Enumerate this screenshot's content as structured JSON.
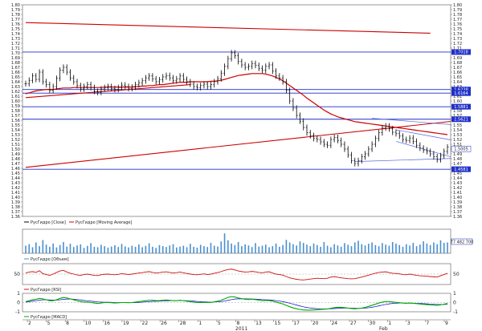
{
  "chart_data": {
    "type": "candlestick",
    "main_panel": {
      "ylim": [
        1.36,
        1.8
      ],
      "y_ticks": [
        "1.80",
        "1.79",
        "1.78",
        "1.77",
        "1.76",
        "1.75",
        "1.74",
        "1.73",
        "1.72",
        "1.71",
        "1.70",
        "1.69",
        "1.68",
        "1.67",
        "1.66",
        "1.65",
        "1.64",
        "1.63",
        "1.62",
        "1.61",
        "1.60",
        "1.59",
        "1.58",
        "1.57",
        "1.56",
        "1.55",
        "1.54",
        "1.53",
        "1.52",
        "1.51",
        "1.50",
        "1.49",
        "1.48",
        "1.47",
        "1.46",
        "1.45",
        "1.44",
        "1.43",
        "1.42",
        "1.41",
        "1.40",
        "1.39",
        "1.38",
        "1.37",
        "1.36"
      ],
      "price_series": {
        "name": "РусГидро [Close]",
        "color": "#000000",
        "y": [
          1.636,
          1.643,
          1.652,
          1.645,
          1.66,
          1.64,
          1.634,
          1.622,
          1.63,
          1.647,
          1.664,
          1.67,
          1.66,
          1.648,
          1.64,
          1.632,
          1.625,
          1.63,
          1.634,
          1.628,
          1.62,
          1.618,
          1.625,
          1.628,
          1.63,
          1.626,
          1.624,
          1.628,
          1.633,
          1.63,
          1.626,
          1.629,
          1.634,
          1.638,
          1.642,
          1.648,
          1.652,
          1.646,
          1.64,
          1.644,
          1.65,
          1.653,
          1.648,
          1.642,
          1.646,
          1.652,
          1.645,
          1.64,
          1.635,
          1.63,
          1.628,
          1.632,
          1.635,
          1.63,
          1.634,
          1.64,
          1.646,
          1.658,
          1.672,
          1.688,
          1.7,
          1.694,
          1.682,
          1.675,
          1.67,
          1.672,
          1.678,
          1.674,
          1.668,
          1.664,
          1.672,
          1.675,
          1.662,
          1.652,
          1.648,
          1.64,
          1.622,
          1.6,
          1.585,
          1.57,
          1.558,
          1.545,
          1.534,
          1.528,
          1.522,
          1.52,
          1.515,
          1.51,
          1.508,
          1.52,
          1.524,
          1.518,
          1.51,
          1.5,
          1.488,
          1.476,
          1.47,
          1.476,
          1.484,
          1.49,
          1.5,
          1.51,
          1.522,
          1.534,
          1.544,
          1.548,
          1.542,
          1.535,
          1.532,
          1.527,
          1.52,
          1.518,
          1.523,
          1.516,
          1.508,
          1.502,
          1.498,
          1.495,
          1.49,
          1.484,
          1.478,
          1.486,
          1.495,
          1.504
        ]
      },
      "moving_average": {
        "name": "РусГидро [Moving Average]",
        "color": "#cc0000",
        "y": [
          1.615,
          1.617,
          1.619,
          1.621,
          1.622,
          1.623,
          1.624,
          1.624,
          1.624,
          1.625,
          1.626,
          1.627,
          1.627,
          1.627,
          1.628,
          1.628,
          1.628,
          1.628,
          1.628,
          1.628,
          1.628,
          1.628,
          1.628,
          1.629,
          1.629,
          1.629,
          1.629,
          1.629,
          1.629,
          1.629,
          1.629,
          1.629,
          1.63,
          1.63,
          1.631,
          1.631,
          1.632,
          1.632,
          1.633,
          1.634,
          1.634,
          1.635,
          1.636,
          1.637,
          1.638,
          1.639,
          1.639,
          1.639,
          1.64,
          1.64,
          1.64,
          1.64,
          1.64,
          1.64,
          1.641,
          1.641,
          1.642,
          1.643,
          1.645,
          1.647,
          1.649,
          1.651,
          1.653,
          1.654,
          1.655,
          1.656,
          1.657,
          1.657,
          1.657,
          1.657,
          1.656,
          1.654,
          1.652,
          1.649,
          1.646,
          1.642,
          1.637,
          1.632,
          1.627,
          1.622,
          1.617,
          1.612,
          1.606,
          1.601,
          1.596,
          1.591,
          1.586,
          1.581,
          1.577,
          1.573,
          1.57,
          1.567,
          1.565,
          1.563,
          1.561,
          1.559,
          1.557,
          1.556,
          1.555,
          1.554,
          1.553,
          1.552,
          1.551,
          1.55,
          1.549,
          1.548,
          1.547,
          1.546,
          1.545,
          1.544,
          1.543,
          1.542,
          1.541,
          1.54,
          1.539,
          1.538,
          1.537,
          1.536,
          1.535,
          1.534,
          1.533,
          1.532,
          1.531,
          1.53
        ]
      },
      "horizontal_levels": [
        {
          "value": 1.7018,
          "label": "1.7018"
        },
        {
          "value": 1.6238,
          "label": "1.6238"
        },
        {
          "value": 1.6164,
          "label": "1.6164"
        },
        {
          "value": 1.5881,
          "label": "1.5881"
        },
        {
          "value": 1.5621,
          "label": "1.5621"
        },
        {
          "value": 1.4581,
          "label": "1.4581"
        }
      ],
      "price_tag": {
        "value": 1.5005,
        "label": "1.5005"
      },
      "trend_lines": [
        {
          "color": "#cc0000",
          "from": [
            0,
            1.763
          ],
          "to": [
            118,
            1.741
          ]
        },
        {
          "color": "#cc0000",
          "from": [
            0,
            1.462
          ],
          "to": [
            135,
            1.566
          ]
        },
        {
          "color": "#cc0000",
          "from": [
            0,
            1.607
          ],
          "to": [
            48,
            1.634
          ]
        },
        {
          "color": "#5566dd",
          "from": [
            101,
            1.564
          ],
          "to": [
            131,
            1.547
          ]
        },
        {
          "color": "#5566dd",
          "from": [
            96,
            1.474
          ],
          "to": [
            131,
            1.482
          ]
        },
        {
          "color": "#5566dd",
          "from": [
            108,
            1.54
          ],
          "to": [
            131,
            1.51
          ]
        },
        {
          "color": "#5566dd",
          "from": [
            108,
            1.516
          ],
          "to": [
            131,
            1.47
          ]
        }
      ]
    },
    "volume_panel": {
      "name": "РусГидро [Объем]",
      "value_label": "77 482 700",
      "ylim": [
        0,
        1
      ],
      "values": [
        0.35,
        0.42,
        0.28,
        0.5,
        0.33,
        0.61,
        0.4,
        0.3,
        0.45,
        0.27,
        0.38,
        0.52,
        0.31,
        0.44,
        0.29,
        0.36,
        0.41,
        0.25,
        0.34,
        0.47,
        0.3,
        0.28,
        0.39,
        0.33,
        0.26,
        0.31,
        0.37,
        0.29,
        0.43,
        0.32,
        0.27,
        0.35,
        0.3,
        0.41,
        0.28,
        0.34,
        0.46,
        0.3,
        0.25,
        0.38,
        0.33,
        0.29,
        0.36,
        0.42,
        0.27,
        0.31,
        0.35,
        0.28,
        0.44,
        0.3,
        0.26,
        0.39,
        0.33,
        0.29,
        0.48,
        0.35,
        0.31,
        0.55,
        0.92,
        0.6,
        0.45,
        0.38,
        0.52,
        0.33,
        0.41,
        0.36,
        0.29,
        0.47,
        0.31,
        0.35,
        0.4,
        0.28,
        0.33,
        0.45,
        0.3,
        0.38,
        0.62,
        0.5,
        0.42,
        0.36,
        0.55,
        0.48,
        0.4,
        0.33,
        0.45,
        0.38,
        0.3,
        0.52,
        0.35,
        0.28,
        0.42,
        0.36,
        0.3,
        0.47,
        0.39,
        0.33,
        0.5,
        0.58,
        0.42,
        0.36,
        0.44,
        0.5,
        0.38,
        0.33,
        0.47,
        0.4,
        0.35,
        0.52,
        0.45,
        0.38,
        0.3,
        0.42,
        0.36,
        0.48,
        0.33,
        0.4,
        0.55,
        0.45,
        0.38,
        0.5,
        0.42,
        0.6,
        0.48,
        0.5
      ]
    },
    "rsi_panel": {
      "name": "РусГидро [RSI]",
      "tick_label": "50",
      "ylim": [
        0,
        100
      ],
      "values": [
        55,
        60,
        62,
        58,
        66,
        52,
        48,
        44,
        50,
        58,
        65,
        68,
        60,
        54,
        50,
        46,
        44,
        48,
        50,
        47,
        44,
        43,
        47,
        49,
        50,
        48,
        47,
        49,
        52,
        50,
        48,
        50,
        53,
        55,
        57,
        60,
        62,
        58,
        55,
        57,
        60,
        61,
        58,
        55,
        57,
        60,
        56,
        53,
        50,
        48,
        47,
        49,
        51,
        48,
        50,
        54,
        57,
        62,
        68,
        72,
        74,
        70,
        65,
        62,
        60,
        61,
        63,
        61,
        58,
        56,
        60,
        61,
        55,
        50,
        48,
        45,
        38,
        32,
        28,
        25,
        23,
        22,
        24,
        26,
        28,
        30,
        29,
        28,
        30,
        36,
        38,
        35,
        32,
        30,
        28,
        27,
        28,
        32,
        36,
        40,
        45,
        50,
        54,
        58,
        60,
        61,
        57,
        54,
        53,
        51,
        48,
        47,
        50,
        47,
        44,
        42,
        41,
        40,
        38,
        37,
        36,
        42,
        48,
        54
      ]
    },
    "macd_panel": {
      "name": "РусГидро [MACD]",
      "ylim": [
        -1,
        1
      ],
      "y_ticks": [
        "1",
        "0",
        "-1"
      ],
      "line": {
        "color": "#00aa00",
        "values": [
          0.1,
          0.2,
          0.3,
          0.35,
          0.45,
          0.4,
          0.3,
          0.2,
          0.2,
          0.3,
          0.45,
          0.55,
          0.5,
          0.4,
          0.3,
          0.2,
          0.1,
          0.05,
          0.05,
          0.0,
          -0.05,
          -0.1,
          -0.05,
          0.0,
          0.0,
          -0.02,
          -0.05,
          -0.03,
          0.0,
          0.0,
          -0.02,
          0.0,
          0.05,
          0.1,
          0.15,
          0.2,
          0.25,
          0.25,
          0.2,
          0.2,
          0.25,
          0.28,
          0.25,
          0.2,
          0.2,
          0.25,
          0.2,
          0.15,
          0.1,
          0.05,
          0.0,
          0.0,
          0.02,
          0.0,
          0.02,
          0.08,
          0.15,
          0.25,
          0.4,
          0.55,
          0.65,
          0.6,
          0.5,
          0.42,
          0.35,
          0.33,
          0.35,
          0.32,
          0.26,
          0.2,
          0.22,
          0.22,
          0.15,
          0.05,
          -0.05,
          -0.15,
          -0.3,
          -0.45,
          -0.58,
          -0.68,
          -0.75,
          -0.8,
          -0.82,
          -0.82,
          -0.8,
          -0.78,
          -0.75,
          -0.72,
          -0.7,
          -0.62,
          -0.55,
          -0.52,
          -0.52,
          -0.55,
          -0.6,
          -0.65,
          -0.68,
          -0.65,
          -0.6,
          -0.52,
          -0.42,
          -0.3,
          -0.18,
          -0.05,
          0.05,
          0.1,
          0.1,
          0.06,
          0.02,
          -0.02,
          -0.06,
          -0.08,
          -0.06,
          -0.08,
          -0.12,
          -0.16,
          -0.2,
          -0.22,
          -0.25,
          -0.28,
          -0.3,
          -0.25,
          -0.18,
          -0.1
        ]
      },
      "signal": {
        "color": "#0000cc",
        "values": [
          0.05,
          0.1,
          0.15,
          0.2,
          0.25,
          0.3,
          0.3,
          0.28,
          0.26,
          0.27,
          0.3,
          0.35,
          0.38,
          0.38,
          0.36,
          0.32,
          0.28,
          0.23,
          0.19,
          0.15,
          0.11,
          0.07,
          0.05,
          0.04,
          0.03,
          0.02,
          0.0,
          -0.01,
          -0.01,
          -0.01,
          -0.01,
          -0.01,
          0.0,
          0.02,
          0.04,
          0.07,
          0.1,
          0.13,
          0.14,
          0.15,
          0.17,
          0.19,
          0.2,
          0.2,
          0.2,
          0.21,
          0.21,
          0.2,
          0.18,
          0.15,
          0.12,
          0.1,
          0.08,
          0.06,
          0.05,
          0.06,
          0.08,
          0.11,
          0.17,
          0.24,
          0.32,
          0.38,
          0.4,
          0.41,
          0.4,
          0.39,
          0.38,
          0.37,
          0.35,
          0.32,
          0.3,
          0.28,
          0.25,
          0.21,
          0.16,
          0.1,
          0.02,
          -0.07,
          -0.17,
          -0.27,
          -0.37,
          -0.46,
          -0.53,
          -0.59,
          -0.63,
          -0.66,
          -0.68,
          -0.69,
          -0.69,
          -0.68,
          -0.65,
          -0.63,
          -0.61,
          -0.6,
          -0.6,
          -0.61,
          -0.62,
          -0.63,
          -0.62,
          -0.6,
          -0.56,
          -0.51,
          -0.44,
          -0.36,
          -0.28,
          -0.2,
          -0.14,
          -0.1,
          -0.07,
          -0.06,
          -0.06,
          -0.06,
          -0.06,
          -0.07,
          -0.08,
          -0.1,
          -0.12,
          -0.14,
          -0.17,
          -0.19,
          -0.21,
          -0.22,
          -0.21,
          -0.19
        ]
      }
    },
    "x_axis": {
      "day_labels": [
        "2",
        "5",
        "8",
        "10",
        "16",
        "19",
        "22",
        "26",
        "28",
        "1",
        "5",
        "8",
        "13",
        "15",
        "17",
        "20",
        "24",
        "27",
        "30",
        "1",
        "3",
        "7",
        "9"
      ],
      "month_labels": [
        "2011",
        "Feb"
      ]
    },
    "legend": {
      "price": "РусГидро [Close]",
      "ma": "РусГидро [Moving Average]",
      "volume": "РусГидро [Объем]",
      "rsi": "РусГидро [RSI]",
      "macd": "РусГидро [MACD]"
    }
  }
}
